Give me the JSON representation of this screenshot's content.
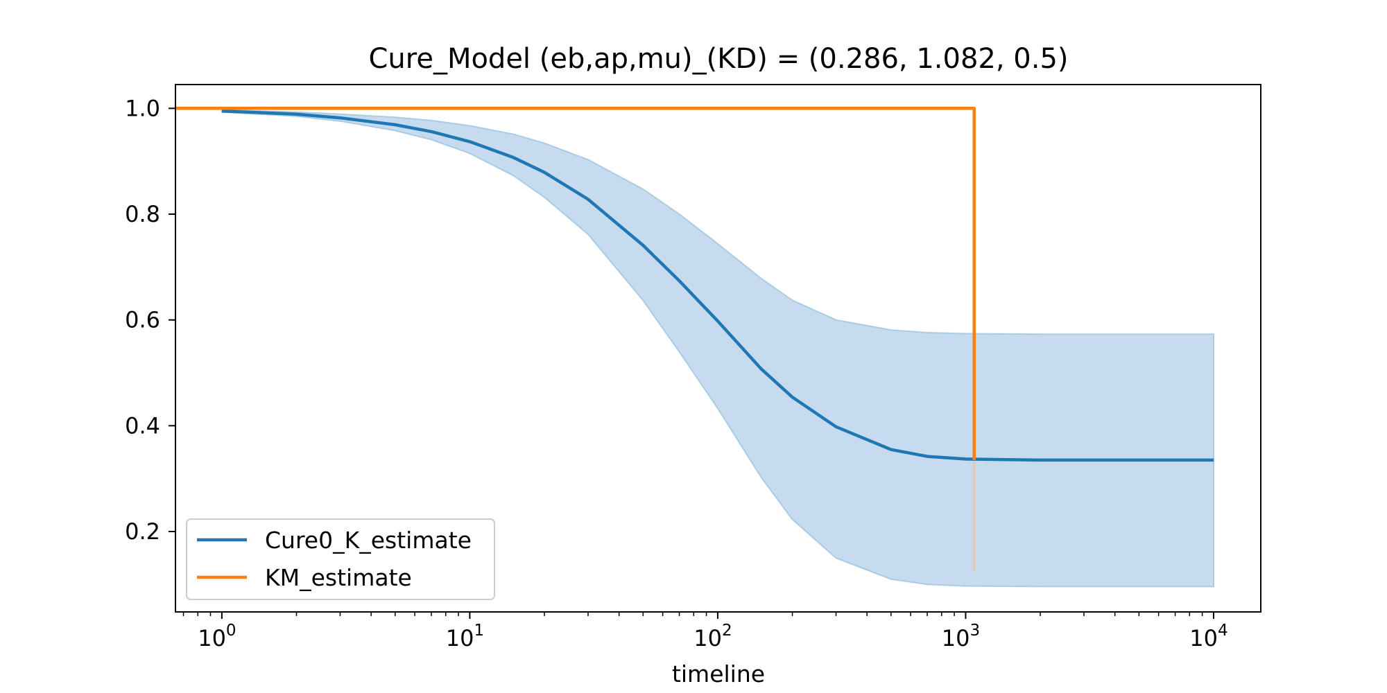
{
  "chart_data": {
    "type": "line",
    "title": "Cure_Model (eb,ap,mu)_(KD) = (0.286, 1.082, 0.5)",
    "xlabel": "timeline",
    "ylabel": "",
    "xscale": "log",
    "xlim": [
      0.65,
      15500
    ],
    "ylim": [
      0.048,
      1.045
    ],
    "x_ticks": [
      {
        "value": 1,
        "base": "10",
        "exp": "0"
      },
      {
        "value": 10,
        "base": "10",
        "exp": "1"
      },
      {
        "value": 100,
        "base": "10",
        "exp": "2"
      },
      {
        "value": 1000,
        "base": "10",
        "exp": "3"
      },
      {
        "value": 10000,
        "base": "10",
        "exp": "4"
      }
    ],
    "y_ticks": [
      {
        "value": 0.2,
        "label": "0.2"
      },
      {
        "value": 0.4,
        "label": "0.4"
      },
      {
        "value": 0.6,
        "label": "0.6"
      },
      {
        "value": 0.8,
        "label": "0.8"
      },
      {
        "value": 1.0,
        "label": "1.0"
      }
    ],
    "grid": false,
    "legend_position": "lower-left",
    "colors": {
      "cure": "#1f77b4",
      "km": "#ff7f0e",
      "band_fill": "#c6dbed",
      "band_edge": "#a9cbe5"
    },
    "series": [
      {
        "name": "Cure0_K_estimate",
        "x": [
          1,
          2,
          3,
          5,
          7,
          10,
          15,
          20,
          30,
          50,
          70,
          100,
          150,
          200,
          300,
          500,
          700,
          1000,
          2000,
          5000,
          10000
        ],
        "y": [
          0.995,
          0.989,
          0.982,
          0.969,
          0.956,
          0.937,
          0.907,
          0.879,
          0.828,
          0.741,
          0.674,
          0.598,
          0.507,
          0.454,
          0.398,
          0.355,
          0.342,
          0.337,
          0.335,
          0.335,
          0.335
        ]
      },
      {
        "name": "KM_estimate",
        "x": [
          0.65,
          1082,
          1082
        ],
        "y": [
          1.0,
          1.0,
          0.335
        ]
      }
    ],
    "confidence_band": {
      "series": "Cure0_K_estimate",
      "x": [
        1,
        2,
        3,
        5,
        7,
        10,
        15,
        20,
        30,
        50,
        70,
        100,
        150,
        200,
        300,
        500,
        700,
        1000,
        2000,
        5000,
        10000
      ],
      "lower": [
        0.993,
        0.985,
        0.976,
        0.958,
        0.941,
        0.915,
        0.873,
        0.832,
        0.762,
        0.637,
        0.54,
        0.433,
        0.302,
        0.223,
        0.15,
        0.11,
        0.1,
        0.097,
        0.096,
        0.096,
        0.096
      ],
      "upper": [
        0.997,
        0.993,
        0.989,
        0.983,
        0.977,
        0.967,
        0.951,
        0.934,
        0.903,
        0.847,
        0.8,
        0.744,
        0.678,
        0.637,
        0.6,
        0.581,
        0.576,
        0.574,
        0.573,
        0.573,
        0.573
      ]
    },
    "km_censor_band": {
      "x": 1082,
      "lower": 0.125,
      "upper": 0.335
    }
  }
}
